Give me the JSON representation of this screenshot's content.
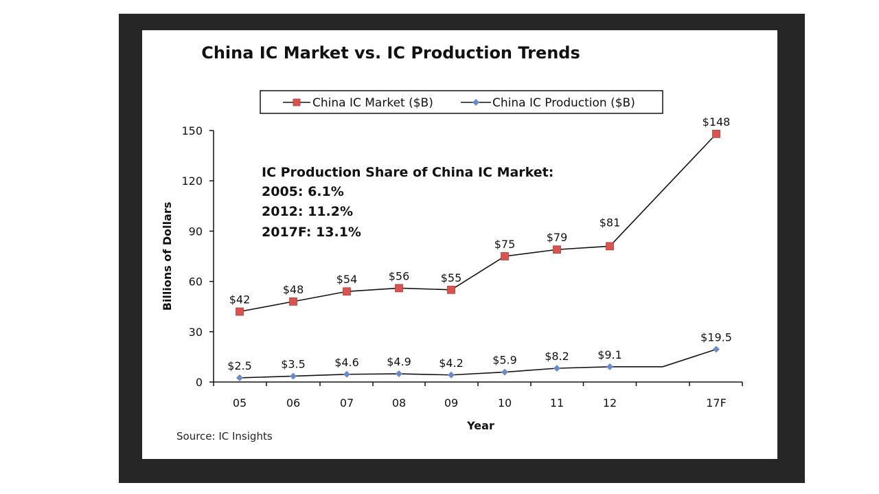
{
  "chart_data": {
    "type": "line",
    "title": "China IC Market vs. IC Production Trends",
    "xlabel": "Year",
    "ylabel": "Billions of Dollars",
    "ylim": [
      0,
      150
    ],
    "yticks": [
      "0",
      "30",
      "60",
      "90",
      "120",
      "150"
    ],
    "categories": [
      "05",
      "06",
      "07",
      "08",
      "09",
      "10",
      "11",
      "12",
      "",
      "17F"
    ],
    "legend_position": "top",
    "series": [
      {
        "name": "China IC Market ($B)",
        "color": "#d9534f",
        "marker": "square",
        "values": [
          42,
          48,
          54,
          56,
          55,
          75,
          79,
          81,
          null,
          148
        ],
        "labels": [
          "$42",
          "$48",
          "$54",
          "$56",
          "$55",
          "$75",
          "$79",
          "$81",
          "",
          "$148"
        ]
      },
      {
        "name": "China IC Production ($B)",
        "color": "#6a8bc9",
        "marker": "diamond",
        "values": [
          2.5,
          3.5,
          4.6,
          4.9,
          4.2,
          5.9,
          8.2,
          9.1,
          9.1,
          19.5
        ],
        "labels": [
          "$2.5",
          "$3.5",
          "$4.6",
          "$4.9",
          "$4.2",
          "$5.9",
          "$8.2",
          "$9.1",
          "",
          "$19.5"
        ]
      }
    ],
    "annotations": [
      "IC Production Share of China IC Market:",
      "2005: 6.1%",
      "2012: 11.2%",
      "2017F: 13.1%"
    ],
    "source": "Source: IC Insights"
  }
}
